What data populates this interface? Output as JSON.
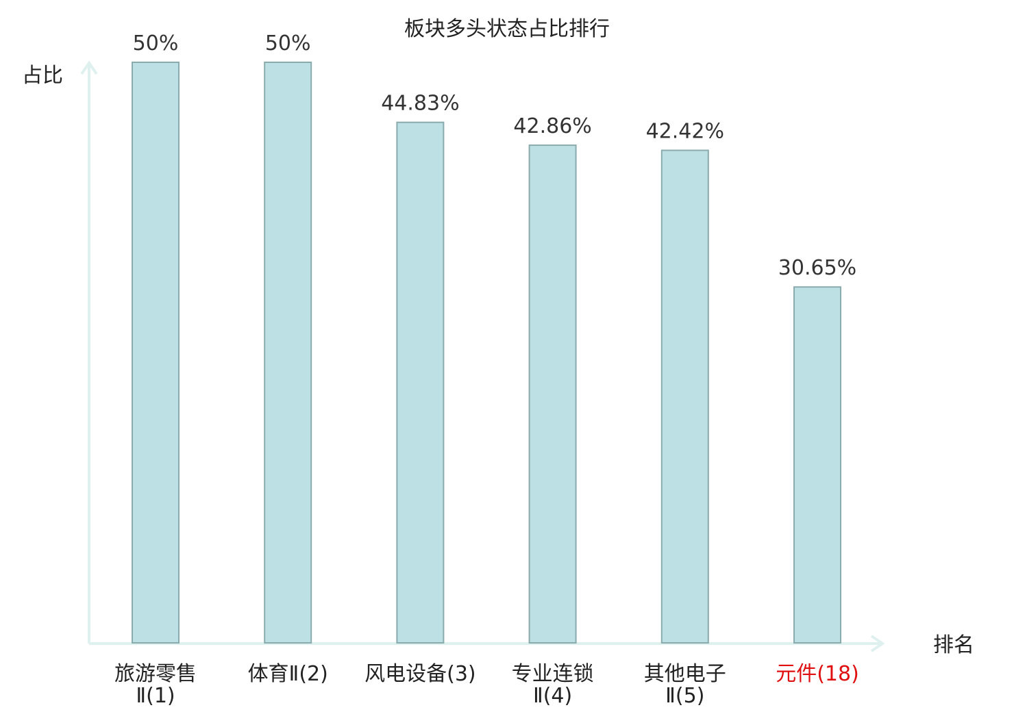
{
  "chart_data": {
    "type": "bar",
    "title": "板块多头状态占比排行",
    "ylabel": "占比",
    "xlabel": "排名",
    "ylim": [
      0,
      50
    ],
    "categories": [
      [
        "旅游零售",
        "Ⅱ(1)"
      ],
      [
        "体育Ⅱ(2)"
      ],
      [
        "风电设备(3)"
      ],
      [
        "专业连锁",
        "Ⅱ(4)"
      ],
      [
        "其他电子",
        "Ⅱ(5)"
      ],
      [
        "元件(18)"
      ]
    ],
    "values": [
      50,
      50,
      44.83,
      42.86,
      42.42,
      30.65
    ],
    "value_labels": [
      "50%",
      "50%",
      "44.83%",
      "42.86%",
      "42.42%",
      "30.65%"
    ],
    "highlight_index": 5,
    "grid": false,
    "colors": {
      "bar_fill": "#bce0e3",
      "bar_stroke": "#8aabad",
      "axis": "#dff1ef",
      "highlight_text": "#e01010"
    }
  }
}
